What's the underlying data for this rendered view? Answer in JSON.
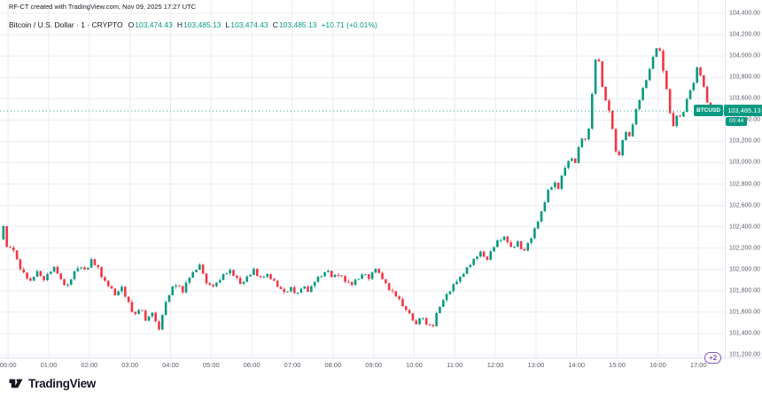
{
  "header": {
    "export_note": "RF-CT created with TradingView.com, Nov 09, 2025 17:27 UTC",
    "symbol_line": "Bitcoin / U.S. Dollar · 1 · CRYPTO",
    "ohlc": {
      "open_label": "O",
      "open": "103,474.43",
      "high_label": "H",
      "high": "103,485.13",
      "low_label": "L",
      "low": "103,474.43",
      "close_label": "C",
      "close": "103,485.13",
      "change": "+10.71 (+0.01%)"
    }
  },
  "last_price": {
    "symbol_label": "BTCUSD",
    "price": "103,485.13",
    "countdown": "00:44"
  },
  "overlay": {
    "plus_badge": "+2"
  },
  "footer": {
    "brand": "TradingView"
  },
  "colors": {
    "up": "#089981",
    "down": "#F23645",
    "grid": "#e9ecf2",
    "axis_text": "#5a5e6b",
    "axis_border": "#dfe2ea",
    "accent": "#089981",
    "violet": "#7e57c2"
  },
  "price_scale": {
    "ticks": [
      {
        "value": 101200,
        "label": "101,200.00"
      },
      {
        "value": 101400,
        "label": "101,400.00"
      },
      {
        "value": 101600,
        "label": "101,600.00"
      },
      {
        "value": 101800,
        "label": "101,800.00"
      },
      {
        "value": 102000,
        "label": "102,000.00"
      },
      {
        "value": 102200,
        "label": "102,200.00"
      },
      {
        "value": 102400,
        "label": "102,400.00"
      },
      {
        "value": 102600,
        "label": "102,600.00"
      },
      {
        "value": 102800,
        "label": "102,800.00"
      },
      {
        "value": 103000,
        "label": "103,000.00"
      },
      {
        "value": 103200,
        "label": "103,200.00"
      },
      {
        "value": 103400,
        "label": "103,400.00"
      },
      {
        "value": 103600,
        "label": "103,600.00"
      },
      {
        "value": 103800,
        "label": "103,800.00"
      },
      {
        "value": 104000,
        "label": "104,000.00"
      },
      {
        "value": 104200,
        "label": "104,200.00"
      },
      {
        "value": 104400,
        "label": "104,400.00"
      }
    ]
  },
  "time_scale": {
    "ticks": [
      {
        "hour": 0,
        "label": "00:00"
      },
      {
        "hour": 1,
        "label": "01:00"
      },
      {
        "hour": 2,
        "label": "02:00"
      },
      {
        "hour": 3,
        "label": "03:00"
      },
      {
        "hour": 4,
        "label": "04:00"
      },
      {
        "hour": 5,
        "label": "05:00"
      },
      {
        "hour": 6,
        "label": "06:00"
      },
      {
        "hour": 7,
        "label": "07:00"
      },
      {
        "hour": 8,
        "label": "08:00"
      },
      {
        "hour": 9,
        "label": "09:00"
      },
      {
        "hour": 10,
        "label": "10:00"
      },
      {
        "hour": 11,
        "label": "11:00"
      },
      {
        "hour": 12,
        "label": "12:00"
      },
      {
        "hour": 13,
        "label": "13:00"
      },
      {
        "hour": 14,
        "label": "14:00"
      },
      {
        "hour": 15,
        "label": "15:00"
      },
      {
        "hour": 16,
        "label": "16:00"
      },
      {
        "hour": 17,
        "label": "17:00"
      }
    ]
  },
  "chart_data": {
    "type": "candlestick",
    "symbol": "BTCUSD",
    "title": "Bitcoin / U.S. Dollar, 1 minute, CRYPTO",
    "interval_minutes": 1,
    "x_domain_hours": [
      -0.2,
      17.65
    ],
    "y_domain": [
      101200,
      104400
    ],
    "last_point_hour": 17.45,
    "last_price_value": 103485.13,
    "last_bar": {
      "open": 103474.43,
      "high": 103485.13,
      "low": 103474.43,
      "close": 103485.13,
      "change": 10.71,
      "change_pct": 0.01
    },
    "price_keypoints_est": [
      [
        -0.2,
        102280
      ],
      [
        -0.12,
        102400
      ],
      [
        0,
        102150
      ],
      [
        0.1,
        102230
      ],
      [
        0.25,
        102050
      ],
      [
        0.4,
        101950
      ],
      [
        0.55,
        101880
      ],
      [
        0.7,
        101990
      ],
      [
        0.85,
        101900
      ],
      [
        1,
        101960
      ],
      [
        1.15,
        102030
      ],
      [
        1.3,
        101900
      ],
      [
        1.45,
        101840
      ],
      [
        1.6,
        101950
      ],
      [
        1.75,
        102040
      ],
      [
        1.9,
        101980
      ],
      [
        2.05,
        102080
      ],
      [
        2.2,
        102030
      ],
      [
        2.35,
        101900
      ],
      [
        2.5,
        101830
      ],
      [
        2.65,
        101760
      ],
      [
        2.8,
        101830
      ],
      [
        2.95,
        101700
      ],
      [
        3.1,
        101560
      ],
      [
        3.25,
        101650
      ],
      [
        3.4,
        101520
      ],
      [
        3.55,
        101600
      ],
      [
        3.7,
        101420
      ],
      [
        3.85,
        101650
      ],
      [
        4,
        101800
      ],
      [
        4.15,
        101870
      ],
      [
        4.3,
        101800
      ],
      [
        4.45,
        101920
      ],
      [
        4.6,
        101980
      ],
      [
        4.7,
        102060
      ],
      [
        4.85,
        101900
      ],
      [
        5,
        101830
      ],
      [
        5.15,
        101880
      ],
      [
        5.3,
        101950
      ],
      [
        5.45,
        102000
      ],
      [
        5.6,
        101920
      ],
      [
        5.75,
        101860
      ],
      [
        5.9,
        101930
      ],
      [
        6.05,
        101990
      ],
      [
        6.2,
        101920
      ],
      [
        6.35,
        101960
      ],
      [
        6.5,
        101900
      ],
      [
        6.65,
        101840
      ],
      [
        6.8,
        101780
      ],
      [
        6.95,
        101830
      ],
      [
        7.1,
        101760
      ],
      [
        7.25,
        101850
      ],
      [
        7.4,
        101800
      ],
      [
        7.55,
        101890
      ],
      [
        7.7,
        101940
      ],
      [
        7.85,
        101990
      ],
      [
        8,
        101920
      ],
      [
        8.15,
        101960
      ],
      [
        8.3,
        101900
      ],
      [
        8.45,
        101850
      ],
      [
        8.6,
        101910
      ],
      [
        8.75,
        101960
      ],
      [
        8.9,
        101920
      ],
      [
        9.05,
        102010
      ],
      [
        9.2,
        101930
      ],
      [
        9.35,
        101830
      ],
      [
        9.5,
        101780
      ],
      [
        9.65,
        101700
      ],
      [
        9.8,
        101620
      ],
      [
        9.95,
        101540
      ],
      [
        10.05,
        101470
      ],
      [
        10.15,
        101570
      ],
      [
        10.3,
        101500
      ],
      [
        10.45,
        101450
      ],
      [
        10.6,
        101640
      ],
      [
        10.75,
        101730
      ],
      [
        10.9,
        101820
      ],
      [
        11.05,
        101890
      ],
      [
        11.2,
        101960
      ],
      [
        11.35,
        102040
      ],
      [
        11.5,
        102110
      ],
      [
        11.65,
        102160
      ],
      [
        11.8,
        102090
      ],
      [
        11.95,
        102210
      ],
      [
        12.1,
        102280
      ],
      [
        12.25,
        102310
      ],
      [
        12.4,
        102190
      ],
      [
        12.55,
        102250
      ],
      [
        12.7,
        102160
      ],
      [
        12.85,
        102280
      ],
      [
        13,
        102400
      ],
      [
        13.15,
        102560
      ],
      [
        13.3,
        102740
      ],
      [
        13.45,
        102820
      ],
      [
        13.55,
        102760
      ],
      [
        13.7,
        102950
      ],
      [
        13.85,
        103050
      ],
      [
        13.95,
        102980
      ],
      [
        14.05,
        103130
      ],
      [
        14.15,
        103260
      ],
      [
        14.25,
        103190
      ],
      [
        14.35,
        103480
      ],
      [
        14.45,
        103950
      ],
      [
        14.52,
        104030
      ],
      [
        14.6,
        103780
      ],
      [
        14.7,
        103600
      ],
      [
        14.8,
        103480
      ],
      [
        14.9,
        103300
      ],
      [
        15,
        102990
      ],
      [
        15.1,
        103160
      ],
      [
        15.2,
        103310
      ],
      [
        15.3,
        103240
      ],
      [
        15.45,
        103480
      ],
      [
        15.6,
        103650
      ],
      [
        15.75,
        103820
      ],
      [
        15.9,
        104000
      ],
      [
        16,
        104120
      ],
      [
        16.08,
        103980
      ],
      [
        16.18,
        103780
      ],
      [
        16.28,
        103520
      ],
      [
        16.38,
        103330
      ],
      [
        16.48,
        103460
      ],
      [
        16.58,
        103400
      ],
      [
        16.68,
        103560
      ],
      [
        16.78,
        103650
      ],
      [
        16.88,
        103760
      ],
      [
        16.98,
        103900
      ],
      [
        17.08,
        103790
      ],
      [
        17.18,
        103640
      ],
      [
        17.28,
        103460
      ],
      [
        17.38,
        103530
      ],
      [
        17.45,
        103485
      ]
    ],
    "render": {
      "resolution_minutes": 5,
      "wiggle": [
        0,
        12,
        -8,
        16,
        -12,
        5,
        -16,
        9,
        -3,
        14,
        -10,
        3,
        8,
        -14,
        11,
        -5,
        2,
        -11,
        7,
        -15,
        4,
        -6,
        13,
        -9
      ],
      "wick_pattern": [
        6,
        14,
        4,
        10,
        18,
        3,
        8,
        22,
        5,
        12,
        3,
        16,
        7,
        4,
        11,
        9
      ]
    }
  }
}
